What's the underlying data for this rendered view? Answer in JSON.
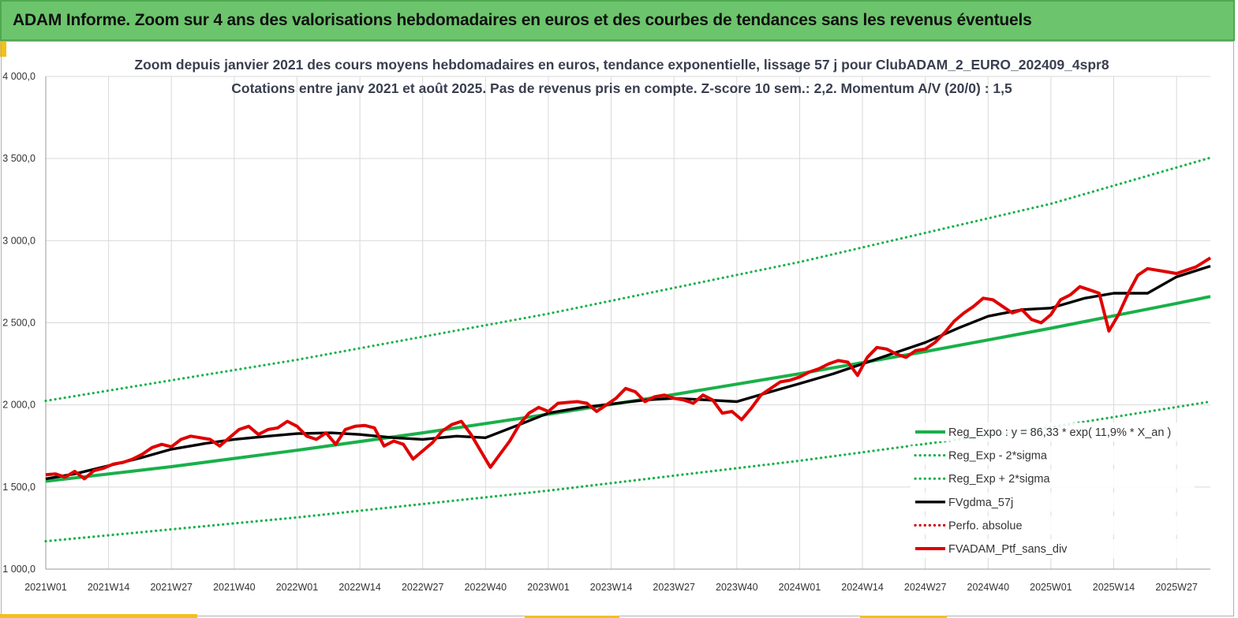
{
  "header": {
    "title": "ADAM Informe. Zoom sur 4 ans des valorisations hebdomadaires en euros et des courbes de tendances sans les revenus éventuels"
  },
  "colors": {
    "banner": "#6cc46c",
    "accent": "#f0c020",
    "reg_expo": "#19b04a",
    "sigma": "#19b04a",
    "gdma": "#000000",
    "perfo": "#d00000",
    "ptf": "#e00000",
    "grid": "#d9d9d9"
  },
  "chart_data": {
    "type": "line",
    "title": "Zoom depuis janvier 2021 des cours moyens hebdomadaires  en euros, tendance exponentielle, lissage 57 j  pour ClubADAM_2_EURO_202409_4spr8",
    "subtitle": "Cotations  entre janv 2021 et août 2025. Pas de revenus pris en compte. Z-score 10 sem.: 2,2. Momentum A/V (20/0) : 1,5",
    "ylim": [
      1000,
      4000
    ],
    "y_ticks": [
      "1 000,0",
      "1 500,0",
      "2 000,0",
      "2 500,0",
      "3 000,0",
      "3 500,0",
      "4 000,0"
    ],
    "y_tick_values": [
      1000,
      1500,
      2000,
      2500,
      3000,
      3500,
      4000
    ],
    "x_range_weeks": [
      0,
      241
    ],
    "x_ticks": [
      "2021W01",
      "2021W14",
      "2021W27",
      "2021W40",
      "2022W01",
      "2022W14",
      "2022W27",
      "2022W40",
      "2023W01",
      "2023W14",
      "2023W27",
      "2023W40",
      "2024W01",
      "2024W14",
      "2024W27",
      "2024W40",
      "2025W01",
      "2025W14",
      "2025W27"
    ],
    "x_tick_weeks": [
      0,
      13,
      26,
      39,
      52,
      65,
      78,
      91,
      104,
      117,
      130,
      143,
      156,
      169,
      182,
      195,
      208,
      221,
      234
    ],
    "grid": true,
    "legend_position": "bottom-right",
    "series": [
      {
        "name": "Reg_Expo : y = 86,33 * exp( 11,9% *  X_an )",
        "style": "solid-thick",
        "color_key": "reg_expo",
        "x": [
          0,
          26,
          52,
          78,
          104,
          130,
          156,
          182,
          208,
          234,
          241
        ],
        "y": [
          1535,
          1624,
          1724,
          1830,
          1943,
          2063,
          2190,
          2325,
          2467,
          2618,
          2660
        ]
      },
      {
        "name": "Reg_Exp - 2*sigma",
        "style": "dotted",
        "color_key": "sigma",
        "x": [
          0,
          52,
          104,
          156,
          208,
          241
        ],
        "y": [
          1170,
          1315,
          1478,
          1660,
          1865,
          2020
        ]
      },
      {
        "name": "Reg_Exp + 2*sigma",
        "style": "dotted",
        "color_key": "sigma",
        "x": [
          0,
          52,
          104,
          156,
          208,
          241
        ],
        "y": [
          2025,
          2275,
          2555,
          2870,
          3225,
          3505
        ]
      },
      {
        "name": "FVgdma_57j",
        "style": "solid",
        "color_key": "gdma",
        "x": [
          0,
          6,
          13,
          20,
          26,
          33,
          39,
          46,
          52,
          59,
          65,
          72,
          78,
          85,
          91,
          98,
          104,
          111,
          117,
          124,
          130,
          137,
          143,
          150,
          156,
          163,
          169,
          176,
          182,
          189,
          195,
          202,
          208,
          215,
          221,
          228,
          234,
          241
        ],
        "y": [
          1550,
          1580,
          1630,
          1680,
          1730,
          1765,
          1790,
          1810,
          1825,
          1830,
          1820,
          1800,
          1790,
          1810,
          1800,
          1880,
          1950,
          1985,
          2005,
          2030,
          2040,
          2030,
          2020,
          2080,
          2130,
          2190,
          2250,
          2320,
          2380,
          2470,
          2540,
          2580,
          2590,
          2650,
          2680,
          2680,
          2780,
          2845
        ]
      },
      {
        "name": "Perfo. absolue",
        "style": "dotted",
        "color_key": "perfo",
        "x": [],
        "y": []
      },
      {
        "name": "FVADAM_Ptf_sans_div",
        "style": "solid-thick",
        "color_key": "ptf",
        "x": [
          0,
          2,
          4,
          6,
          8,
          10,
          12,
          14,
          16,
          18,
          20,
          22,
          24,
          26,
          28,
          30,
          32,
          34,
          36,
          38,
          40,
          42,
          44,
          46,
          48,
          50,
          52,
          54,
          56,
          58,
          60,
          62,
          64,
          66,
          68,
          70,
          72,
          74,
          76,
          78,
          80,
          82,
          84,
          86,
          88,
          90,
          92,
          94,
          96,
          98,
          100,
          102,
          104,
          106,
          108,
          110,
          112,
          114,
          116,
          118,
          120,
          122,
          124,
          126,
          128,
          130,
          132,
          134,
          136,
          138,
          140,
          142,
          144,
          146,
          148,
          150,
          152,
          154,
          156,
          158,
          160,
          162,
          164,
          166,
          168,
          170,
          172,
          174,
          176,
          178,
          180,
          182,
          184,
          186,
          188,
          190,
          192,
          194,
          196,
          198,
          200,
          202,
          204,
          206,
          208,
          210,
          212,
          214,
          216,
          218,
          220,
          222,
          224,
          226,
          228,
          230,
          232,
          234,
          236,
          238,
          241
        ],
        "y": [
          1575,
          1580,
          1560,
          1595,
          1550,
          1600,
          1615,
          1640,
          1650,
          1670,
          1700,
          1740,
          1760,
          1745,
          1790,
          1810,
          1800,
          1790,
          1750,
          1800,
          1850,
          1870,
          1820,
          1850,
          1860,
          1900,
          1870,
          1810,
          1790,
          1830,
          1760,
          1850,
          1870,
          1875,
          1860,
          1750,
          1780,
          1760,
          1670,
          1720,
          1770,
          1840,
          1880,
          1900,
          1820,
          1720,
          1620,
          1700,
          1780,
          1880,
          1950,
          1985,
          1960,
          2010,
          2015,
          2020,
          2010,
          1960,
          2000,
          2040,
          2100,
          2080,
          2020,
          2050,
          2060,
          2040,
          2030,
          2010,
          2060,
          2030,
          1950,
          1960,
          1910,
          1980,
          2060,
          2100,
          2140,
          2150,
          2170,
          2200,
          2220,
          2250,
          2270,
          2260,
          2180,
          2290,
          2350,
          2340,
          2310,
          2290,
          2330,
          2340,
          2380,
          2440,
          2510,
          2560,
          2600,
          2650,
          2640,
          2600,
          2560,
          2580,
          2520,
          2500,
          2550,
          2640,
          2670,
          2720,
          2700,
          2680,
          2450,
          2550,
          2680,
          2790,
          2830,
          2820,
          2810,
          2800,
          2820,
          2840,
          2895
        ]
      }
    ]
  }
}
